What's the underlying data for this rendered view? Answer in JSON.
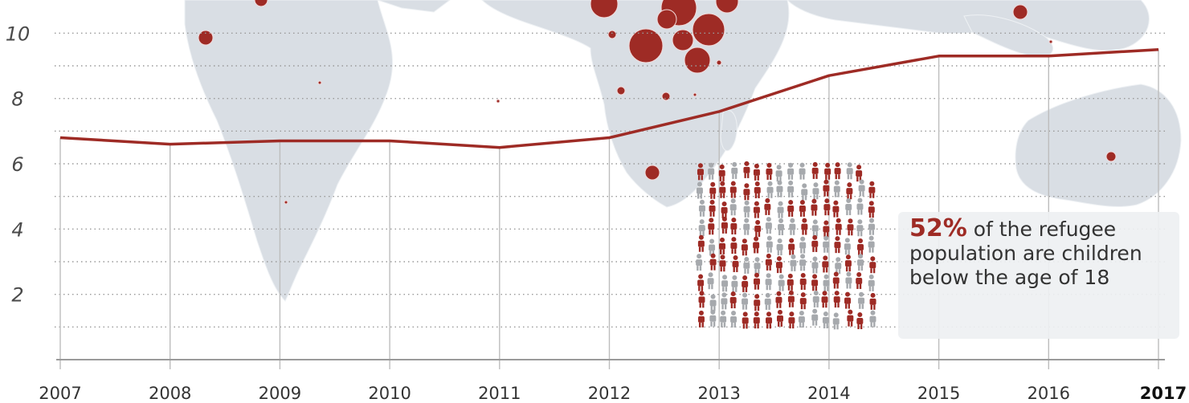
{
  "chart_data": {
    "type": "line",
    "title": "",
    "xlabel": "",
    "ylabel": "",
    "x": [
      "2007",
      "2008",
      "2009",
      "2010",
      "2011",
      "2012",
      "2013",
      "2014",
      "2015",
      "2016",
      "2017"
    ],
    "series": [
      {
        "values": [
          6.8,
          6.6,
          6.7,
          6.7,
          6.5,
          6.8,
          7.6,
          8.7,
          9.3,
          9.3,
          9.5
        ]
      }
    ],
    "ylim": [
      0,
      11
    ],
    "yticks": [
      "2",
      "4",
      "6",
      "8",
      "10"
    ],
    "highlight_x": "2017",
    "grid": true,
    "line_color": "#9e2b25",
    "background": "world map with dark red refugee-origin bubbles",
    "annotation": {
      "value": "52%",
      "text": "of the refugee population are children below the age of 18",
      "pictogram": "grid of person icons, roughly half dark red and half grey",
      "red_fraction": 0.52
    }
  }
}
